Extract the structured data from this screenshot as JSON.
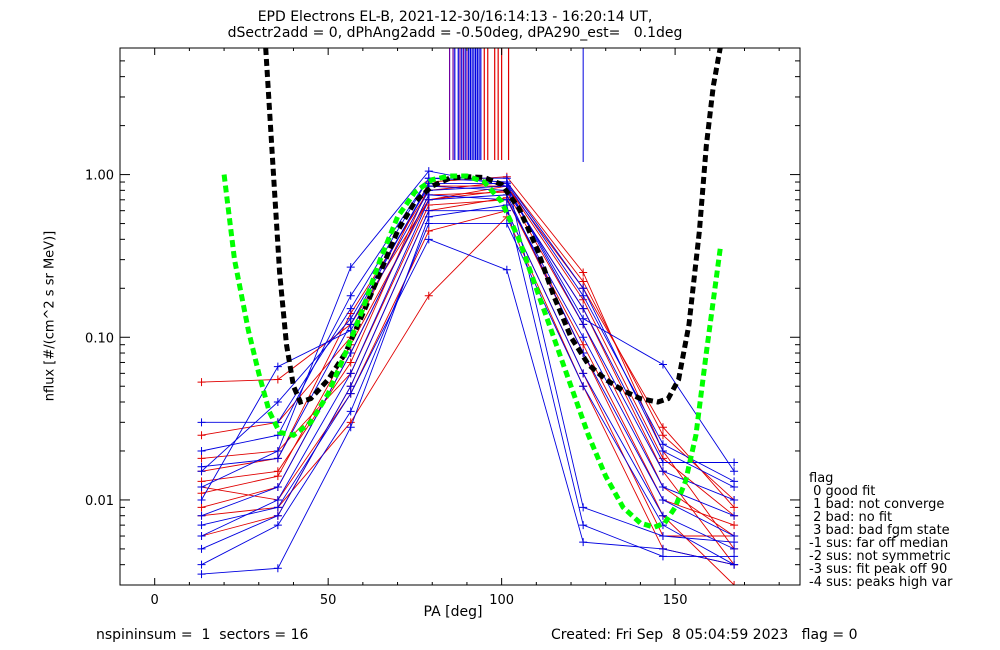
{
  "header": {
    "title_line1": "EPD Electrons EL-B, 2021-12-30/16:14:13 - 16:20:14 UT,",
    "title_line2": "dSectr2add = 0, dPhAng2add = -0.50deg, dPA290_est=   0.1deg"
  },
  "footer": {
    "left": "nspininsum =  1  sectors = 16",
    "right": "Created: Fri Sep  8 05:04:59 2023   flag = 0"
  },
  "legend": {
    "title": "flag",
    "items": [
      " 0 good fit",
      " 1 bad: not converge",
      " 2 bad: no fit",
      " 3 bad: bad fgm state",
      "-1 sus: far off median",
      "-2 sus: not symmetric",
      "-3 sus: fit peak off 90",
      "-4 sus: peaks high var"
    ]
  },
  "colors": {
    "red": "#e00000",
    "blue": "#0000e0",
    "black": "#000000",
    "green": "#00ff00",
    "purple": "#7000a0"
  },
  "chart_data": {
    "type": "line",
    "xlabel": "PA [deg]",
    "ylabel": "nflux [#/(cm^2 s sr MeV)]",
    "xlim": [
      -10,
      186
    ],
    "ylim": [
      0.003,
      6.0
    ],
    "yscale": "log",
    "xticks": [
      0,
      50,
      100,
      150
    ],
    "xtick_labels": [
      "0",
      "50",
      "100",
      "150"
    ],
    "yticks": [
      0.01,
      0.1,
      1.0
    ],
    "ytick_labels": [
      "0.01",
      "0.10",
      "1.00"
    ],
    "pa_bins": [
      13.5,
      35.5,
      56.5,
      79,
      101.5,
      123.5,
      146.5,
      167
    ],
    "series": [
      {
        "color": "red",
        "values": [
          0.013,
          0.015,
          0.07,
          0.85,
          0.85,
          0.2,
          0.028,
          0.009
        ]
      },
      {
        "color": "red",
        "values": [
          0.025,
          0.03,
          0.1,
          0.9,
          0.97,
          0.25,
          0.02,
          0.005
        ]
      },
      {
        "color": "red",
        "values": [
          0.053,
          0.055,
          0.12,
          0.7,
          0.8,
          0.15,
          0.015,
          0.004
        ]
      },
      {
        "color": "red",
        "values": [
          0.009,
          0.012,
          0.08,
          0.75,
          0.78,
          0.12,
          0.012,
          0.006
        ]
      },
      {
        "color": "red",
        "values": [
          0.018,
          0.02,
          0.06,
          0.65,
          0.7,
          0.09,
          0.01,
          0.007
        ]
      },
      {
        "color": "red",
        "values": [
          0.006,
          0.008,
          0.05,
          0.6,
          0.72,
          0.08,
          0.008,
          0.003
        ]
      },
      {
        "color": "red",
        "values": [
          0.012,
          0.01,
          0.045,
          0.45,
          0.6,
          0.06,
          0.006,
          0.006
        ]
      },
      {
        "color": "red",
        "values": [
          0.008,
          0.009,
          0.03,
          0.18,
          0.55,
          0.05,
          0.005,
          0.004
        ]
      },
      {
        "color": "red",
        "values": [
          0.015,
          0.018,
          0.14,
          0.8,
          0.9,
          0.22,
          0.025,
          0.01
        ]
      },
      {
        "color": "red",
        "values": [
          0.011,
          0.014,
          0.09,
          0.7,
          0.85,
          0.17,
          0.018,
          0.008
        ]
      },
      {
        "color": "blue",
        "values": [
          0.012,
          0.02,
          0.27,
          1.05,
          0.85,
          0.13,
          0.068,
          0.015
        ]
      },
      {
        "color": "blue",
        "values": [
          0.03,
          0.03,
          0.15,
          0.95,
          0.9,
          0.2,
          0.02,
          0.012
        ]
      },
      {
        "color": "blue",
        "values": [
          0.015,
          0.04,
          0.13,
          0.85,
          0.8,
          0.15,
          0.017,
          0.017
        ]
      },
      {
        "color": "blue",
        "values": [
          0.01,
          0.066,
          0.11,
          0.8,
          0.85,
          0.12,
          0.015,
          0.01
        ]
      },
      {
        "color": "blue",
        "values": [
          0.008,
          0.012,
          0.08,
          0.75,
          0.7,
          0.1,
          0.012,
          0.008
        ]
      },
      {
        "color": "blue",
        "values": [
          0.006,
          0.01,
          0.06,
          0.7,
          0.75,
          0.08,
          0.01,
          0.006
        ]
      },
      {
        "color": "blue",
        "values": [
          0.005,
          0.008,
          0.05,
          0.6,
          0.6,
          0.06,
          0.008,
          0.005
        ]
      },
      {
        "color": "blue",
        "values": [
          0.004,
          0.007,
          0.035,
          0.5,
          0.5,
          0.05,
          0.007,
          0.004
        ]
      },
      {
        "color": "blue",
        "values": [
          0.02,
          0.025,
          0.18,
          0.95,
          0.95,
          0.009,
          0.006,
          0.0055
        ]
      },
      {
        "color": "blue",
        "values": [
          0.007,
          0.009,
          0.045,
          0.4,
          0.26,
          0.0055,
          0.005,
          0.004
        ]
      },
      {
        "color": "blue",
        "values": [
          0.0035,
          0.0038,
          0.028,
          0.55,
          0.65,
          0.007,
          0.0045,
          0.0045
        ]
      },
      {
        "color": "blue",
        "values": [
          0.016,
          0.018,
          0.12,
          0.88,
          0.88,
          0.18,
          0.022,
          0.013
        ]
      }
    ],
    "median_fit": {
      "color": "black",
      "x": [
        32,
        34,
        36,
        38,
        40,
        42,
        45,
        50,
        55,
        60,
        65,
        70,
        75,
        80,
        85,
        90,
        95,
        100,
        105,
        110,
        115,
        120,
        125,
        130,
        135,
        140,
        145,
        148,
        151,
        154,
        157,
        159,
        161,
        163
      ],
      "y": [
        6.0,
        1.2,
        0.25,
        0.09,
        0.05,
        0.04,
        0.042,
        0.055,
        0.08,
        0.14,
        0.25,
        0.45,
        0.68,
        0.85,
        0.95,
        0.97,
        0.96,
        0.87,
        0.62,
        0.36,
        0.18,
        0.1,
        0.068,
        0.055,
        0.047,
        0.042,
        0.04,
        0.042,
        0.055,
        0.12,
        0.45,
        1.5,
        3.5,
        6.0
      ]
    },
    "model_fit": {
      "color": "green",
      "x": [
        20,
        23,
        27,
        30,
        33,
        36,
        40,
        45,
        50,
        55,
        60,
        65,
        70,
        75,
        80,
        85,
        90,
        95,
        100,
        105,
        110,
        115,
        120,
        125,
        130,
        135,
        140,
        144,
        147,
        150,
        153,
        156,
        159,
        163
      ],
      "y": [
        1.0,
        0.3,
        0.11,
        0.06,
        0.035,
        0.026,
        0.025,
        0.03,
        0.045,
        0.08,
        0.15,
        0.3,
        0.55,
        0.78,
        0.93,
        0.98,
        0.98,
        0.9,
        0.68,
        0.4,
        0.2,
        0.1,
        0.05,
        0.025,
        0.014,
        0.009,
        0.0072,
        0.0068,
        0.0072,
        0.009,
        0.013,
        0.025,
        0.08,
        0.35
      ]
    },
    "vertical_markers": {
      "purple": [
        85,
        86,
        88,
        89,
        90
      ],
      "blue": [
        86.5,
        87.5,
        88.5,
        89.5,
        90.5,
        91,
        91.5,
        92,
        92.5,
        93,
        93.5,
        94
      ],
      "red": [
        95,
        96,
        98,
        99,
        100,
        102
      ],
      "blue_tall": [
        123.5
      ]
    }
  }
}
